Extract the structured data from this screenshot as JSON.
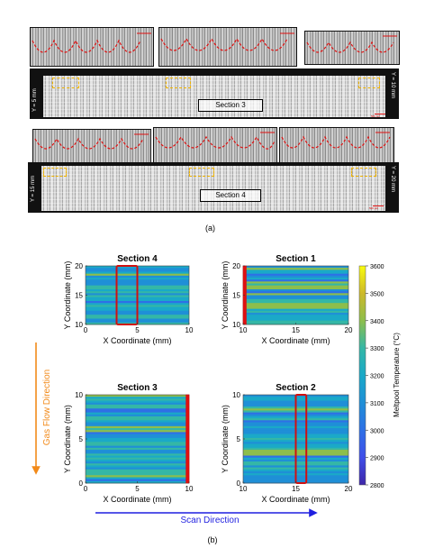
{
  "panel_a": {
    "caption": "(a)",
    "top_strip": {
      "section_label": "Section 3",
      "left_label": "Y = 5 mm",
      "right_label": "Y = 10 mm",
      "scalebar": "500 μm"
    },
    "bottom_strip": {
      "section_label": "Section 4",
      "left_label": "Y = 15 mm",
      "right_label": "Y = 20 mm",
      "scalebar": "500 μm"
    }
  },
  "panel_b": {
    "caption": "(b)",
    "gas_flow_label": "Gas Flow Direction",
    "scan_label": "Scan Direction",
    "colorbar": {
      "label": "Meltpool Temperature (°C)",
      "ticks": [
        "3600",
        "3500",
        "3400",
        "3300",
        "3200",
        "3100",
        "3000",
        "2900",
        "2800"
      ],
      "colors": [
        "#f9fb0e",
        "#cdb92a",
        "#8dbe4c",
        "#34b7a6",
        "#1aa9c8",
        "#1f8fd7",
        "#2e70e6",
        "#3f4ee9",
        "#3e26a8"
      ]
    }
  },
  "chart_data": [
    {
      "type": "heatmap",
      "title": "Section 4",
      "xlabel": "X Coordinate (mm)",
      "ylabel": "Y Coordinate (mm)",
      "xlim": [
        0,
        10
      ],
      "ylim": [
        10,
        20
      ],
      "xticks": [
        "0",
        "5",
        "10"
      ],
      "yticks": [
        "10",
        "15",
        "20"
      ],
      "highlight_x": [
        3,
        5
      ]
    },
    {
      "type": "heatmap",
      "title": "Section 1",
      "xlabel": "X Coordinate (mm)",
      "ylabel": "Y Coordinate (mm)",
      "xlim": [
        10,
        20
      ],
      "ylim": [
        10,
        20
      ],
      "xticks": [
        "10",
        "15",
        "20"
      ],
      "yticks": [
        "10",
        "15",
        "20"
      ],
      "highlight_x": [
        10,
        10.3
      ]
    },
    {
      "type": "heatmap",
      "title": "Section 3",
      "xlabel": "X Coordinate (mm)",
      "ylabel": "Y Coordinate (mm)",
      "xlim": [
        0,
        10
      ],
      "ylim": [
        0,
        10
      ],
      "xticks": [
        "0",
        "5",
        "10"
      ],
      "yticks": [
        "0",
        "5",
        "10"
      ],
      "highlight_x": [
        9.7,
        10
      ]
    },
    {
      "type": "heatmap",
      "title": "Section 2",
      "xlabel": "X Coordinate (mm)",
      "ylabel": "Y Coordinate (mm)",
      "xlim": [
        10,
        20
      ],
      "ylim": [
        0,
        10
      ],
      "xticks": [
        "10",
        "15",
        "20"
      ],
      "yticks": [
        "0",
        "5",
        "10"
      ],
      "highlight_x": [
        15,
        16
      ]
    }
  ]
}
